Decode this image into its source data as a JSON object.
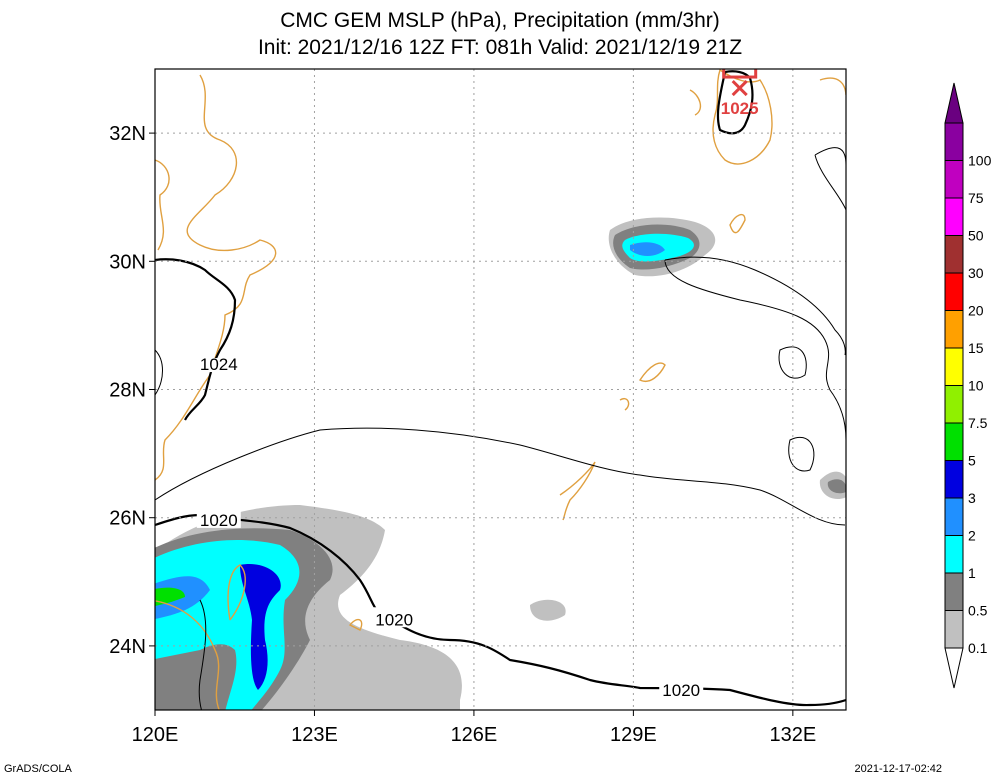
{
  "title": {
    "line1": "CMC GEM MSLP (hPa), Precipitation (mm/3hr)",
    "line2": "Init: 2021/12/16 12Z  FT: 081h  Valid: 2021/12/19 21Z"
  },
  "footer": {
    "left": "GrADS/COLA",
    "right": "2021-12-17-02:42"
  },
  "axes": {
    "x_ticks": [
      {
        "value": 120,
        "label": "120E"
      },
      {
        "value": 123,
        "label": "123E"
      },
      {
        "value": 126,
        "label": "126E"
      },
      {
        "value": 129,
        "label": "129E"
      },
      {
        "value": 132,
        "label": "132E"
      }
    ],
    "y_ticks": [
      {
        "value": 24,
        "label": "24N"
      },
      {
        "value": 26,
        "label": "26N"
      },
      {
        "value": 28,
        "label": "28N"
      },
      {
        "value": 30,
        "label": "30N"
      },
      {
        "value": 32,
        "label": "32N"
      }
    ],
    "lon_range": [
      120,
      133
    ],
    "lat_range": [
      23,
      33
    ]
  },
  "colorbar": {
    "levels": [
      {
        "label": "100",
        "color": "#8a00a0"
      },
      {
        "label": "75",
        "color": "#c000c0"
      },
      {
        "label": "50",
        "color": "#ff00ff"
      },
      {
        "label": "30",
        "color": "#a03030"
      },
      {
        "label": "20",
        "color": "#ff0000"
      },
      {
        "label": "15",
        "color": "#ffa000"
      },
      {
        "label": "10",
        "color": "#ffff00"
      },
      {
        "label": "7.5",
        "color": "#90f000"
      },
      {
        "label": "5",
        "color": "#00e000"
      },
      {
        "label": "3",
        "color": "#0000e0"
      },
      {
        "label": "2",
        "color": "#2090ff"
      },
      {
        "label": "1",
        "color": "#00ffff"
      },
      {
        "label": "0.5",
        "color": "#808080"
      },
      {
        "label": "0.1",
        "color": "#c0c0c0"
      }
    ],
    "top_color": "#6a0080"
  },
  "isobar_labels": [
    {
      "text": "1024",
      "lon": 121.2,
      "lat": 28.35
    },
    {
      "text": "1020",
      "lon": 121.2,
      "lat": 25.95
    },
    {
      "text": "1020",
      "lon": 124.5,
      "lat": 24.4
    },
    {
      "text": "1020",
      "lon": 129.9,
      "lat": 23.3
    }
  ],
  "high": {
    "label": "1025",
    "lon": 131.0,
    "lat": 32.5,
    "symbol": "cross-icon"
  }
}
